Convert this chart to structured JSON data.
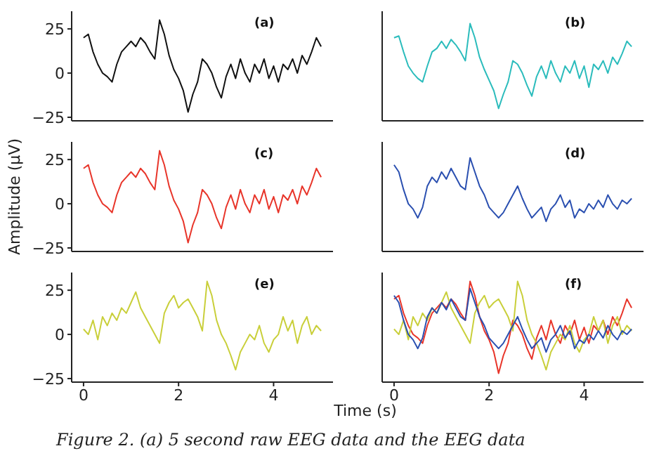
{
  "chart_data": [
    {
      "type": "line",
      "annotations": [
        "(a)"
      ],
      "tick_labels": "y",
      "x": [
        0,
        0.1,
        0.2,
        0.3,
        0.4,
        0.5,
        0.6,
        0.7,
        0.8,
        0.9,
        1.0,
        1.1,
        1.2,
        1.3,
        1.4,
        1.5,
        1.6,
        1.7,
        1.8,
        1.9,
        2.0,
        2.1,
        2.2,
        2.3,
        2.4,
        2.5,
        2.6,
        2.7,
        2.8,
        2.9,
        3.0,
        3.1,
        3.2,
        3.3,
        3.4,
        3.5,
        3.6,
        3.7,
        3.8,
        3.9,
        4.0,
        4.1,
        4.2,
        4.3,
        4.4,
        4.5,
        4.6,
        4.7,
        4.8,
        4.9,
        5.0
      ],
      "xlim": [
        -0.25,
        5.25
      ],
      "xticks": [
        0,
        2,
        4
      ],
      "ylim": [
        -27,
        35
      ],
      "yticks": [
        -25,
        0,
        25
      ],
      "series": [
        {
          "color": "#111111",
          "values": [
            20,
            22,
            12,
            5,
            0,
            -2,
            -5,
            5,
            12,
            15,
            18,
            15,
            20,
            17,
            12,
            8,
            30,
            22,
            10,
            2,
            -3,
            -10,
            -22,
            -12,
            -5,
            8,
            5,
            0,
            -8,
            -14,
            -2,
            5,
            -3,
            8,
            0,
            -5,
            5,
            0,
            8,
            -3,
            4,
            -5,
            5,
            2,
            8,
            0,
            10,
            5,
            12,
            20,
            15
          ]
        }
      ]
    },
    {
      "type": "line",
      "annotations": [
        "(b)"
      ],
      "tick_labels": false,
      "x": [
        0,
        0.1,
        0.2,
        0.3,
        0.4,
        0.5,
        0.6,
        0.7,
        0.8,
        0.9,
        1.0,
        1.1,
        1.2,
        1.3,
        1.4,
        1.5,
        1.6,
        1.7,
        1.8,
        1.9,
        2.0,
        2.1,
        2.2,
        2.3,
        2.4,
        2.5,
        2.6,
        2.7,
        2.8,
        2.9,
        3.0,
        3.1,
        3.2,
        3.3,
        3.4,
        3.5,
        3.6,
        3.7,
        3.8,
        3.9,
        4.0,
        4.1,
        4.2,
        4.3,
        4.4,
        4.5,
        4.6,
        4.7,
        4.8,
        4.9,
        5.0
      ],
      "xlim": [
        -0.25,
        5.25
      ],
      "xticks": [
        0,
        2,
        4
      ],
      "ylim": [
        -27,
        35
      ],
      "yticks": [
        -25,
        0,
        25
      ],
      "series": [
        {
          "color": "#2bbcbc",
          "values": [
            20,
            21,
            12,
            4,
            0,
            -3,
            -5,
            4,
            12,
            14,
            18,
            14,
            19,
            16,
            12,
            7,
            28,
            20,
            9,
            2,
            -4,
            -10,
            -20,
            -12,
            -5,
            7,
            5,
            0,
            -7,
            -13,
            -2,
            4,
            -3,
            7,
            0,
            -5,
            4,
            0,
            7,
            -3,
            4,
            -8,
            5,
            2,
            7,
            0,
            9,
            5,
            11,
            18,
            15
          ]
        }
      ]
    },
    {
      "type": "line",
      "annotations": [
        "(c)"
      ],
      "tick_labels": "y",
      "ylabel": "Amplitude (μV)",
      "x": [
        0,
        0.1,
        0.2,
        0.3,
        0.4,
        0.5,
        0.6,
        0.7,
        0.8,
        0.9,
        1.0,
        1.1,
        1.2,
        1.3,
        1.4,
        1.5,
        1.6,
        1.7,
        1.8,
        1.9,
        2.0,
        2.1,
        2.2,
        2.3,
        2.4,
        2.5,
        2.6,
        2.7,
        2.8,
        2.9,
        3.0,
        3.1,
        3.2,
        3.3,
        3.4,
        3.5,
        3.6,
        3.7,
        3.8,
        3.9,
        4.0,
        4.1,
        4.2,
        4.3,
        4.4,
        4.5,
        4.6,
        4.7,
        4.8,
        4.9,
        5.0
      ],
      "xlim": [
        -0.25,
        5.25
      ],
      "xticks": [
        0,
        2,
        4
      ],
      "ylim": [
        -27,
        35
      ],
      "yticks": [
        -25,
        0,
        25
      ],
      "series": [
        {
          "color": "#e8352a",
          "values": [
            20,
            22,
            12,
            5,
            0,
            -2,
            -5,
            5,
            12,
            15,
            18,
            15,
            20,
            17,
            12,
            8,
            30,
            22,
            10,
            2,
            -3,
            -10,
            -22,
            -12,
            -5,
            8,
            5,
            0,
            -8,
            -14,
            -2,
            5,
            -3,
            8,
            0,
            -5,
            5,
            0,
            8,
            -3,
            4,
            -5,
            5,
            2,
            8,
            0,
            10,
            5,
            12,
            20,
            15
          ]
        }
      ]
    },
    {
      "type": "line",
      "annotations": [
        "(d)"
      ],
      "tick_labels": false,
      "x": [
        0,
        0.1,
        0.2,
        0.3,
        0.4,
        0.5,
        0.6,
        0.7,
        0.8,
        0.9,
        1.0,
        1.1,
        1.2,
        1.3,
        1.4,
        1.5,
        1.6,
        1.7,
        1.8,
        1.9,
        2.0,
        2.1,
        2.2,
        2.3,
        2.4,
        2.5,
        2.6,
        2.7,
        2.8,
        2.9,
        3.0,
        3.1,
        3.2,
        3.3,
        3.4,
        3.5,
        3.6,
        3.7,
        3.8,
        3.9,
        4.0,
        4.1,
        4.2,
        4.3,
        4.4,
        4.5,
        4.6,
        4.7,
        4.8,
        4.9,
        5.0
      ],
      "xlim": [
        -0.25,
        5.25
      ],
      "xticks": [
        0,
        2,
        4
      ],
      "ylim": [
        -27,
        35
      ],
      "yticks": [
        -25,
        0,
        25
      ],
      "series": [
        {
          "color": "#2a4fb0",
          "values": [
            22,
            18,
            8,
            0,
            -3,
            -8,
            -2,
            10,
            15,
            12,
            18,
            14,
            20,
            15,
            10,
            8,
            26,
            18,
            10,
            5,
            -2,
            -5,
            -8,
            -5,
            0,
            5,
            10,
            3,
            -3,
            -8,
            -5,
            -2,
            -10,
            -3,
            0,
            5,
            -2,
            2,
            -8,
            -3,
            -5,
            0,
            -3,
            2,
            -2,
            5,
            0,
            -3,
            2,
            0,
            3
          ]
        }
      ]
    },
    {
      "type": "line",
      "annotations": [
        "(e)"
      ],
      "xlabel": "Time (s)",
      "x": [
        0,
        0.1,
        0.2,
        0.3,
        0.4,
        0.5,
        0.6,
        0.7,
        0.8,
        0.9,
        1.0,
        1.1,
        1.2,
        1.3,
        1.4,
        1.5,
        1.6,
        1.7,
        1.8,
        1.9,
        2.0,
        2.1,
        2.2,
        2.3,
        2.4,
        2.5,
        2.6,
        2.7,
        2.8,
        2.9,
        3.0,
        3.1,
        3.2,
        3.3,
        3.4,
        3.5,
        3.6,
        3.7,
        3.8,
        3.9,
        4.0,
        4.1,
        4.2,
        4.3,
        4.4,
        4.5,
        4.6,
        4.7,
        4.8,
        4.9,
        5.0
      ],
      "xlim": [
        -0.25,
        5.25
      ],
      "xticks": [
        0,
        2,
        4
      ],
      "ylim": [
        -27,
        35
      ],
      "yticks": [
        -25,
        0,
        25
      ],
      "series": [
        {
          "color": "#c9cf3a",
          "values": [
            3,
            0,
            8,
            -3,
            10,
            5,
            12,
            8,
            15,
            12,
            18,
            24,
            15,
            10,
            5,
            0,
            -5,
            12,
            18,
            22,
            15,
            18,
            20,
            15,
            10,
            2,
            30,
            22,
            8,
            0,
            -5,
            -12,
            -20,
            -10,
            -5,
            0,
            -3,
            5,
            -5,
            -10,
            -3,
            0,
            10,
            2,
            8,
            -5,
            5,
            10,
            0,
            5,
            2
          ]
        }
      ]
    },
    {
      "type": "line",
      "annotations": [
        "(f)",
        "Figure 2. (a) 5 second raw EEG data and the EEG data"
      ],
      "tick_labels": "x",
      "x": [
        0,
        0.1,
        0.2,
        0.3,
        0.4,
        0.5,
        0.6,
        0.7,
        0.8,
        0.9,
        1.0,
        1.1,
        1.2,
        1.3,
        1.4,
        1.5,
        1.6,
        1.7,
        1.8,
        1.9,
        2.0,
        2.1,
        2.2,
        2.3,
        2.4,
        2.5,
        2.6,
        2.7,
        2.8,
        2.9,
        3.0,
        3.1,
        3.2,
        3.3,
        3.4,
        3.5,
        3.6,
        3.7,
        3.8,
        3.9,
        4.0,
        4.1,
        4.2,
        4.3,
        4.4,
        4.5,
        4.6,
        4.7,
        4.8,
        4.9,
        5.0
      ],
      "xlim": [
        -0.25,
        5.25
      ],
      "xticks": [
        0,
        2,
        4
      ],
      "ylim": [
        -27,
        35
      ],
      "yticks": [
        -25,
        0,
        25
      ],
      "series": [
        {
          "color": "#e8352a",
          "values": [
            20,
            22,
            12,
            5,
            0,
            -2,
            -5,
            5,
            12,
            15,
            18,
            15,
            20,
            17,
            12,
            8,
            30,
            22,
            10,
            2,
            -3,
            -10,
            -22,
            -12,
            -5,
            8,
            5,
            0,
            -8,
            -14,
            -2,
            5,
            -3,
            8,
            0,
            -5,
            5,
            0,
            8,
            -3,
            4,
            -5,
            5,
            2,
            8,
            0,
            10,
            5,
            12,
            20,
            15
          ]
        },
        {
          "color": "#c9cf3a",
          "values": [
            3,
            0,
            8,
            -3,
            10,
            5,
            12,
            8,
            15,
            12,
            18,
            24,
            15,
            10,
            5,
            0,
            -5,
            12,
            18,
            22,
            15,
            18,
            20,
            15,
            10,
            2,
            30,
            22,
            8,
            0,
            -5,
            -12,
            -20,
            -10,
            -5,
            0,
            -3,
            5,
            -5,
            -10,
            -3,
            0,
            10,
            2,
            8,
            -5,
            5,
            10,
            0,
            5,
            2
          ]
        },
        {
          "color": "#2a4fb0",
          "values": [
            22,
            18,
            8,
            0,
            -3,
            -8,
            -2,
            10,
            15,
            12,
            18,
            14,
            20,
            15,
            10,
            8,
            26,
            18,
            10,
            5,
            -2,
            -5,
            -8,
            -5,
            0,
            5,
            10,
            3,
            -3,
            -8,
            -5,
            -2,
            -10,
            -3,
            0,
            5,
            -2,
            2,
            -8,
            -3,
            -5,
            0,
            -3,
            2,
            -2,
            5,
            0,
            -3,
            2,
            0,
            3
          ]
        }
      ]
    }
  ]
}
